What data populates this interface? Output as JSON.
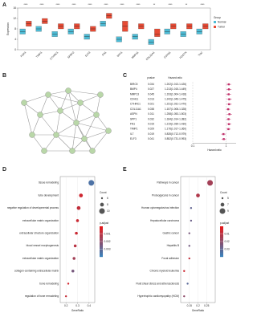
{
  "chart_data": [
    {
      "type": "box",
      "label": "A",
      "ylabel": "Expression",
      "legend_title": "Group",
      "categories": [
        "PDK4",
        "TIMP1",
        "CTHRC1",
        "SFRP2",
        "ELF3",
        "FN1",
        "SPP1",
        "MMP11",
        "COL11A1",
        "CDH11",
        "POSTN",
        "TNC"
      ],
      "sig": [
        "****",
        "****",
        "****",
        "****",
        "****",
        "****",
        "****",
        "****",
        "**",
        "****",
        "**",
        "****"
      ],
      "ylim": [
        0,
        16
      ],
      "yticks": [
        0,
        4,
        8,
        12,
        16
      ],
      "series": [
        {
          "name": "Normal",
          "color": "#4DBBD5",
          "low": [
            6,
            7,
            5,
            6,
            4,
            9,
            3,
            4,
            2,
            6,
            5,
            6
          ],
          "values": [
            7,
            8,
            6,
            7,
            5,
            10,
            4,
            5,
            3,
            7,
            6,
            7
          ],
          "high": [
            8,
            9,
            7,
            8,
            6,
            11,
            5,
            6,
            4,
            8,
            7,
            8
          ]
        },
        {
          "name": "Tumor",
          "color": "#E64B35",
          "low": [
            9,
            10,
            8,
            8,
            7,
            12,
            7,
            8,
            5,
            8,
            8,
            8
          ],
          "values": [
            10,
            11,
            9,
            9,
            8,
            13,
            9,
            9,
            6,
            9,
            9,
            9
          ],
          "high": [
            11,
            12,
            10,
            10,
            9,
            14,
            11,
            10,
            8,
            10,
            10,
            10
          ]
        }
      ]
    },
    {
      "type": "network",
      "label": "B"
    },
    {
      "type": "forest",
      "label": "C",
      "pvalue_header": "pvalue",
      "hr_header": "Hazard ratio",
      "xlabel": "Hazard ratio",
      "categories": [
        "BIRC5",
        "BMP4",
        "MMP13",
        "CDH11",
        "CTHRC1",
        "COL11A1",
        "ASPN",
        "SPP1",
        "FN1",
        "TIMP1",
        "IL7",
        "ELF3"
      ],
      "pvalues": [
        0.034,
        0.027,
        0.045,
        0.013,
        0.021,
        0.038,
        0.011,
        0.032,
        0.015,
        0.029,
        0.019,
        0.041
      ],
      "values": [
        1.202,
        1.213,
        1.193,
        1.242,
        1.231,
        1.157,
        1.258,
        1.184,
        1.219,
        1.176,
        0.835,
        0.852
      ],
      "lower": [
        1.013,
        1.015,
        1.004,
        1.046,
        1.031,
        1.008,
        1.053,
        1.014,
        1.039,
        1.017,
        0.712,
        0.731
      ],
      "upper": [
        1.426,
        1.449,
        1.418,
        1.475,
        1.47,
        1.328,
        1.503,
        1.382,
        1.43,
        1.36,
        0.979,
        0.993
      ],
      "value_labels": [
        "1.202(1.013-1.426)",
        "1.213(1.015-1.449)",
        "1.193(1.004-1.418)",
        "1.242(1.046-1.475)",
        "1.231(1.031-1.470)",
        "1.157(1.008-1.328)",
        "1.258(1.053-1.503)",
        "1.184(1.014-1.382)",
        "1.219(1.039-1.430)",
        "1.176(1.017-1.360)",
        "0.835(0.712-0.979)",
        "0.852(0.731-0.993)"
      ],
      "xlim": [
        0.1,
        2
      ],
      "xticks": [
        0.1,
        1
      ],
      "log": true,
      "color": "#c0306a"
    },
    {
      "type": "dot",
      "label": "D",
      "xlabel": "GeneRatio",
      "size_title": "Count",
      "color_title": "p.adjust",
      "categories": [
        "tissue remodeling",
        "tube development",
        "negative regulation of developmental process",
        "extracellular matrix organization",
        "extracellular structure organization",
        "blood vessel morphogenesis",
        "extracellular matrix organization",
        "collagen-containing extracellular matrix",
        "bone remodeling",
        "regulation of bone remodeling"
      ],
      "values": [
        0.42,
        0.33,
        0.31,
        0.3,
        0.29,
        0.28,
        0.27,
        0.26,
        0.22,
        0.2
      ],
      "sizes": [
        10,
        8,
        8,
        7,
        7,
        7,
        7,
        7,
        6,
        6
      ],
      "colors": [
        0.0035,
        0.0005,
        0.0008,
        0.0006,
        0.0006,
        0.001,
        0.0015,
        0.0025,
        0.0004,
        0.0007
      ],
      "xlim": [
        0.15,
        0.45
      ],
      "xticks": [
        0.2,
        0.3,
        0.4
      ],
      "sizeticks": [
        6,
        8,
        10
      ],
      "clim": [
        0,
        0.004
      ],
      "colorticks": [
        0.001,
        0.002,
        0.003
      ]
    },
    {
      "type": "dot",
      "label": "E",
      "xlabel": "GeneRatio",
      "size_title": "Count",
      "color_title": "p.adjust",
      "categories": [
        "Pathways in cancer",
        "Proteoglycans in cancer",
        "Human cytomegalovirus infection",
        "Hepatocellular carcinoma",
        "Gastric cancer",
        "Hepatitis B",
        "Focal adhesion",
        "Chronic myeloid leukemia",
        "Fluid shear stress and atherosclerosis",
        "Hypertrophic cardiomyopathy (HCM)"
      ],
      "values": [
        0.27,
        0.2,
        0.16,
        0.16,
        0.15,
        0.15,
        0.15,
        0.12,
        0.14,
        0.12
      ],
      "sizes": [
        9,
        7,
        5,
        5,
        5,
        5,
        5,
        5,
        5,
        5
      ],
      "colors": [
        0.015,
        0.012,
        0.03,
        0.028,
        0.025,
        0.026,
        0.008,
        0.005,
        0.032,
        0.02
      ],
      "xlim": [
        0.1,
        0.3
      ],
      "xticks": [
        0.15,
        0.2,
        0.25
      ],
      "sizeticks": [
        5,
        7,
        9
      ],
      "clim": [
        0,
        0.04
      ],
      "colorticks": [
        0.01,
        0.02,
        0.03
      ]
    }
  ]
}
